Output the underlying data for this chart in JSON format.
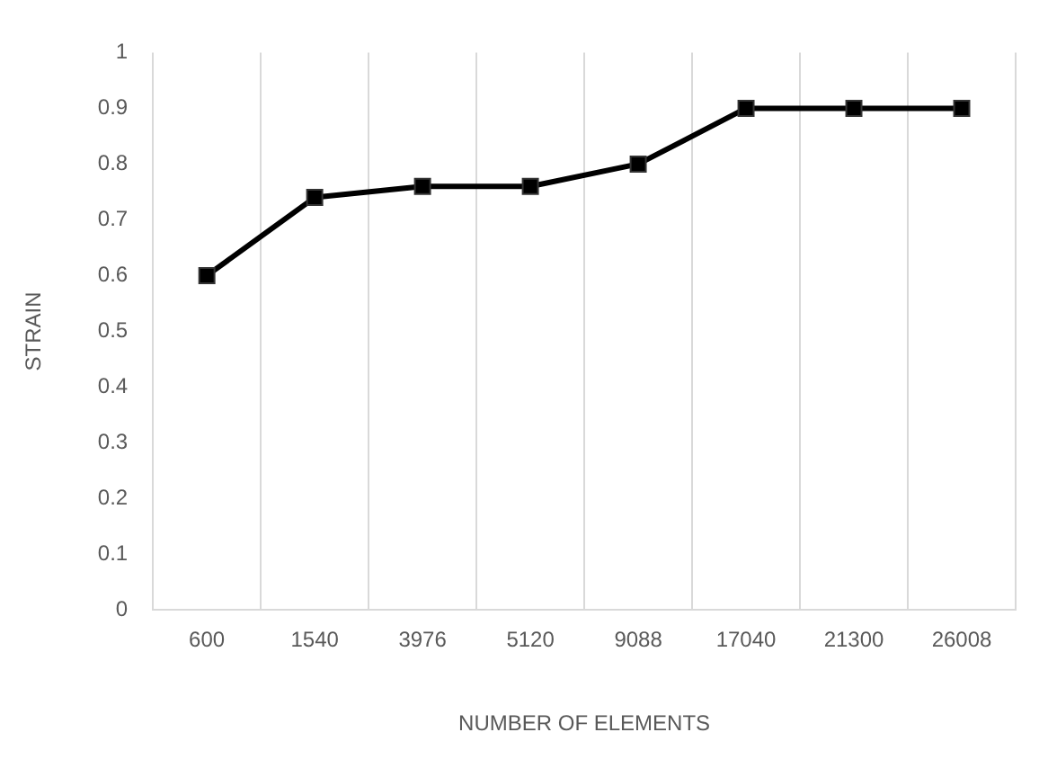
{
  "chart_data": {
    "type": "line",
    "xlabel": "NUMBER OF ELEMENTS",
    "ylabel": "STRAIN",
    "categories": [
      "600",
      "1540",
      "3976",
      "5120",
      "9088",
      "17040",
      "21300",
      "26008"
    ],
    "series": [
      {
        "color": "#000000",
        "values": [
          0.6,
          0.74,
          0.76,
          0.76,
          0.8,
          0.9,
          0.9,
          0.9
        ]
      }
    ],
    "ylim": [
      0,
      1
    ],
    "yticks": [
      0,
      0.1,
      0.2,
      0.3,
      0.4,
      0.5,
      0.6,
      0.7,
      0.8,
      0.9,
      1
    ],
    "grid": "x",
    "legend": false,
    "marker": "square",
    "line_style": "solid"
  }
}
